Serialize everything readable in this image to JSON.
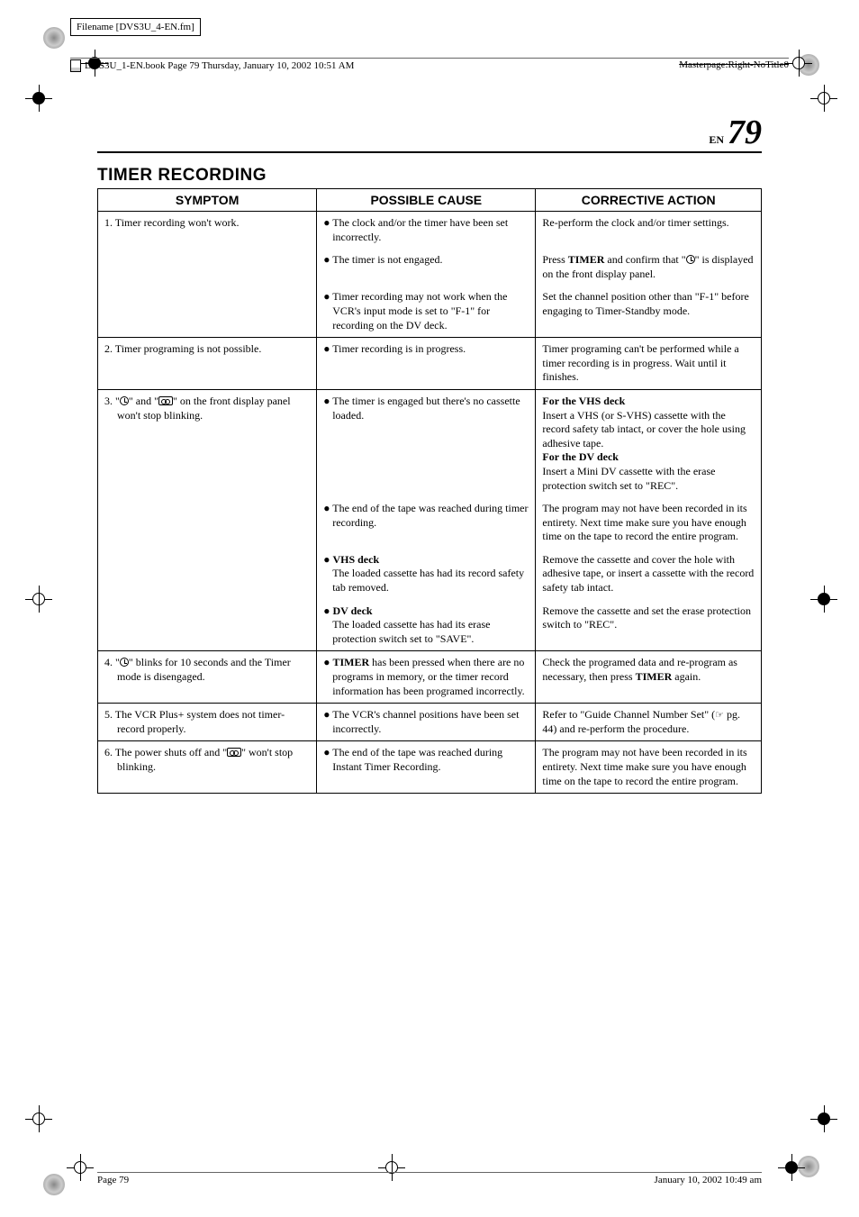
{
  "filename": "Filename [DVS3U_4-EN.fm]",
  "header_left": "DVS3U_1-EN.book  Page 79  Thursday, January 10, 2002  10:51 AM",
  "header_right": "Masterpage:Right-NoTitle0",
  "page_label": "EN",
  "page_number": "79",
  "section_title": "TIMER RECORDING",
  "headers": {
    "c1": "SYMPTOM",
    "c2": "POSSIBLE CAUSE",
    "c3": "CORRECTIVE ACTION"
  },
  "rows": [
    {
      "symptom": "1.  Timer recording won't work.",
      "subs": [
        {
          "cause": "● The clock and/or the timer have been set incorrectly.",
          "action": "Re-perform the clock and/or timer settings."
        },
        {
          "cause": "● The timer is not engaged.",
          "action_pre": "Press ",
          "action_bold": "TIMER",
          "action_mid": " and confirm that \"",
          "action_icon": "clock",
          "action_post": "\" is displayed on the front display panel."
        },
        {
          "cause": "● Timer recording may not work when the VCR's input mode is set to \"F-1\" for recording on the DV deck.",
          "action": "Set the channel position other than \"F-1\" before engaging to Timer-Standby mode."
        }
      ]
    },
    {
      "symptom": "2.  Timer programing is not possible.",
      "subs": [
        {
          "cause": "● Timer recording is in progress.",
          "action": "Timer programing can't be performed while a timer recording is in progress. Wait until it finishes."
        }
      ]
    },
    {
      "symptom_pre": "3.  \"",
      "symptom_icon1": "clock",
      "symptom_mid1": "\" and \"",
      "symptom_icon2": "cass",
      "symptom_post": "\" on the front display panel won't stop blinking.",
      "subs": [
        {
          "cause": "● The timer is engaged but there's no cassette loaded.",
          "action_html": "<span class='bold'>For the VHS deck</span><br>Insert a VHS (or S-VHS) cassette with the record safety tab intact, or cover the hole using adhesive tape.<br><span class='bold'>For the DV deck</span><br>Insert a Mini DV cassette with the erase protection switch set to \"REC\"."
        },
        {
          "cause": "● The end of the tape was reached during timer recording.",
          "action": "The program may not have been recorded in its entirety. Next time make sure you have enough time on the tape to record the entire program."
        },
        {
          "cause_html": "<div class='bullet'>● <span class='bold'>VHS deck</span></div><div style='padding-left:10px;'>The loaded cassette has had its record safety tab removed.</div>",
          "action": "Remove the cassette and cover the hole with adhesive tape, or insert a cassette with the record safety tab intact."
        },
        {
          "cause_html": "<div class='bullet'>● <span class='bold'>DV deck</span></div><div style='padding-left:10px;'>The loaded cassette has had its erase protection switch set to \"SAVE\".</div>",
          "action": "Remove the cassette and set the erase protection switch to \"REC\"."
        }
      ]
    },
    {
      "symptom_pre": "4.  \"",
      "symptom_icon1": "clock",
      "symptom_post": "\" blinks for 10 seconds and the Timer mode is disengaged.",
      "subs": [
        {
          "cause_html": "<div class='bullet'>● <span class='bold'>TIMER</span> has been pressed when there are no programs in memory, or the timer record information has been programed incorrectly.</div>",
          "action_html": "Check the programed data and re-program as necessary, then press <span class='bold'>TIMER</span> again."
        }
      ]
    },
    {
      "symptom": "5.  The VCR Plus+ system does not timer-record properly.",
      "subs": [
        {
          "cause": "● The VCR's channel positions have been set incorrectly.",
          "action_html": "Refer to \"Guide Channel Number Set\" (<span class='point-icon'>☞</span> pg. 44) and re-perform the procedure."
        }
      ]
    },
    {
      "symptom_pre": "6.  The power shuts off and \"",
      "symptom_icon1": "cass",
      "symptom_post": "\" won't stop blinking.",
      "subs": [
        {
          "cause": "● The end of the tape was reached during Instant Timer Recording.",
          "action": "The program may not have been recorded in its entirety. Next time make sure you have enough time on the tape to record the entire program."
        }
      ]
    }
  ],
  "footer_left": "Page 79",
  "footer_right": "January 10, 2002 10:49 am"
}
